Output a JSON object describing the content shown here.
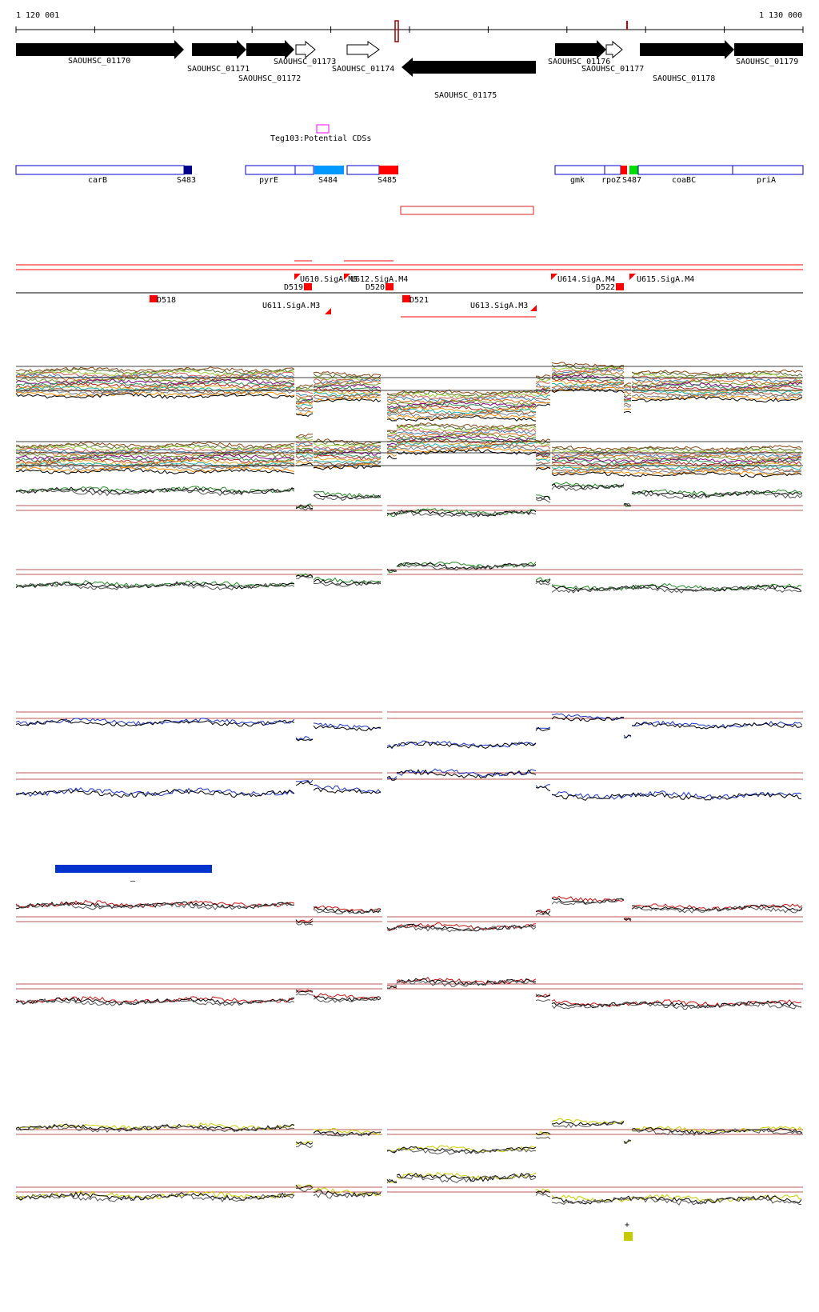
{
  "ruler": {
    "start_label": "1 120 001",
    "end_label": "1 130 000"
  },
  "genes": [
    {
      "id": "SAOUHSC_01170",
      "strand": "+",
      "filled": true
    },
    {
      "id": "SAOUHSC_01171",
      "strand": "+",
      "filled": true
    },
    {
      "id": "SAOUHSC_01172",
      "strand": "+",
      "filled": true
    },
    {
      "id": "SAOUHSC_01173",
      "strand": "+",
      "filled": false
    },
    {
      "id": "SAOUHSC_01174",
      "strand": "+",
      "filled": false
    },
    {
      "id": "SAOUHSC_01175",
      "strand": "-",
      "filled": true
    },
    {
      "id": "SAOUHSC_01176",
      "strand": "+",
      "filled": true
    },
    {
      "id": "SAOUHSC_01177",
      "strand": "+",
      "filled": false
    },
    {
      "id": "SAOUHSC_01178",
      "strand": "+",
      "filled": true
    },
    {
      "id": "SAOUHSC_01179",
      "strand": "+",
      "filled": true
    }
  ],
  "potential_cds": {
    "label": "Teg103:Potential CDSs",
    "color": "#ff00ff"
  },
  "segments": [
    {
      "label": "carB",
      "kind": "gene"
    },
    {
      "label": "S483",
      "kind": "S",
      "color": "#00008b"
    },
    {
      "label": "pyrE",
      "kind": "gene"
    },
    {
      "label": "S484",
      "kind": "S",
      "color": "#0099ff"
    },
    {
      "label": "S485",
      "kind": "S",
      "color": "#ff0000"
    },
    {
      "label": "gmk",
      "kind": "gene"
    },
    {
      "label": "rpoZ",
      "kind": "gene"
    },
    {
      "label": "S487",
      "kind": "S",
      "color": "#00dd00"
    },
    {
      "label": "coaBC",
      "kind": "gene"
    },
    {
      "label": "priA",
      "kind": "gene"
    }
  ],
  "promoters_top": [
    {
      "label": "U610.SigA.M5"
    },
    {
      "label": "U612.SigA.M4"
    },
    {
      "label": "U614.SigA.M4"
    },
    {
      "label": "U615.SigA.M4"
    }
  ],
  "promoters_bottom": [
    {
      "label": "U611.SigA.M3"
    },
    {
      "label": "U613.SigA.M3"
    }
  ],
  "terminators": [
    {
      "label": "D518"
    },
    {
      "label": "D519"
    },
    {
      "label": "D520"
    },
    {
      "label": "D521"
    },
    {
      "label": "D522"
    }
  ],
  "colors": {
    "forward_strand_line": "#ff0000",
    "segment_outline": "#0000cc",
    "threshold_line": "#aa2222",
    "track_green": "#228b22",
    "track_blue": "#1a33cc",
    "track_red": "#cc1111",
    "track_yellow": "#cccc00",
    "legend_bar": "#0033cc",
    "legend_square": "#c8c800"
  },
  "legend_bar_label": "–",
  "legend_square_label": "+"
}
